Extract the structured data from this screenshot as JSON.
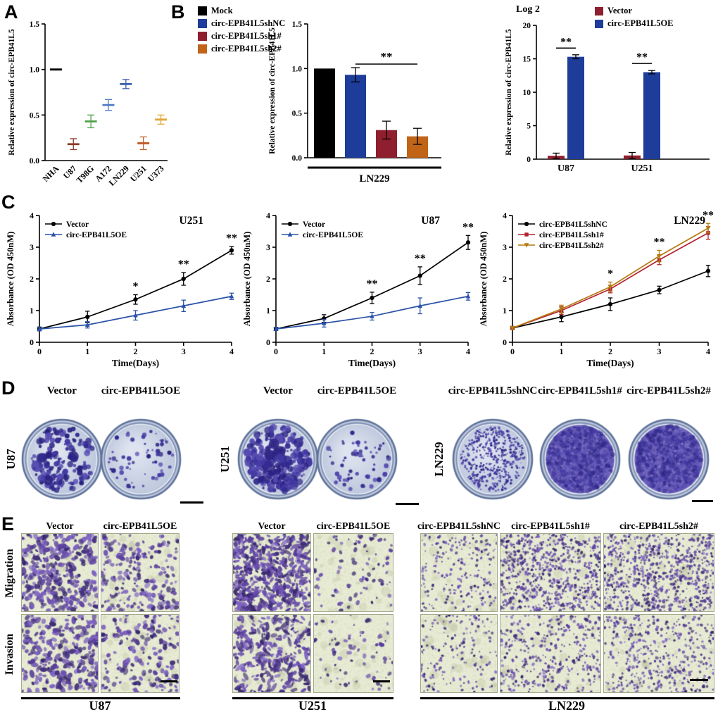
{
  "panel_labels": {
    "a": "A",
    "b": "B",
    "c": "C",
    "d": "D",
    "e": "E"
  },
  "chart_data": [
    {
      "id": "panel_a",
      "type": "scatter",
      "ylabel": "Relative expression of circ-EPB41L5",
      "ylim": [
        0.0,
        1.5
      ],
      "yticks": [
        0,
        0.5,
        1,
        1.5
      ],
      "ytick_labels": [
        "0.0",
        "0.5",
        "1.0",
        "1.5"
      ],
      "categories": [
        "NHA",
        "U87",
        "T98G",
        "A172",
        "LN229",
        "U251",
        "U373"
      ],
      "values": [
        1.0,
        0.18,
        0.43,
        0.61,
        0.84,
        0.19,
        0.45
      ],
      "errors": [
        0,
        0.06,
        0.07,
        0.06,
        0.05,
        0.07,
        0.05
      ],
      "colors": [
        "#000000",
        "#8b3a2a",
        "#4ea04a",
        "#4f7bc4",
        "#3a5fae",
        "#c05a28",
        "#e2a63c"
      ]
    },
    {
      "id": "panel_b_left",
      "type": "bar",
      "ylabel": "Relative expression of circ-EPB41L5",
      "xlabel": "LN229",
      "ylim": [
        0,
        1.5
      ],
      "yticks": [
        0,
        0.5,
        1,
        1.5
      ],
      "ytick_labels": [
        "0.0",
        "0.5",
        "1.0",
        "1.5"
      ],
      "bars": [
        {
          "name": "Mock",
          "value": 1.0,
          "error": 0,
          "color": "#000000"
        },
        {
          "name": "circ-EPB41L5shNC",
          "value": 0.93,
          "error": 0.08,
          "color": "#1e3c99"
        },
        {
          "name": "circ-EPB41L5sh1#",
          "value": 0.31,
          "error": 0.1,
          "color": "#8f1f2e"
        },
        {
          "name": "circ-EPB41L5sh2#",
          "value": 0.24,
          "error": 0.09,
          "color": "#c06418"
        }
      ],
      "significance": {
        "text": "**",
        "from_bar": 1,
        "to_bar": 3,
        "at_value": 1.05
      }
    },
    {
      "id": "panel_b_right",
      "type": "grouped_bar",
      "scale_note": "Log 2",
      "ylabel": "Relative expression of circ-EPB41L5",
      "ylim": [
        0,
        20
      ],
      "yticks": [
        0,
        5,
        10,
        15,
        20
      ],
      "ytick_labels": [
        "0",
        "5",
        "10",
        "15",
        "20"
      ],
      "categories": [
        "U87",
        "U251"
      ],
      "series": [
        {
          "name": "Vector",
          "color": "#8f1f2e",
          "values": [
            0.5,
            0.55
          ],
          "errors": [
            0.4,
            0.45
          ]
        },
        {
          "name": "circ-EPB41L5OE",
          "color": "#1e3c99",
          "values": [
            15.3,
            13.0
          ],
          "errors": [
            0.3,
            0.25
          ]
        }
      ],
      "significance": [
        {
          "group": 0,
          "text": "**",
          "at_value": 16.6
        },
        {
          "group": 1,
          "text": "**",
          "at_value": 14.3
        }
      ]
    },
    {
      "id": "panel_c_u251",
      "type": "line",
      "title": "U251",
      "xlabel": "Time(Days)",
      "ylabel": "Absorbance (OD 450nM)",
      "xlim": [
        0,
        4
      ],
      "ylim": [
        0,
        4
      ],
      "xticks": [
        0,
        1,
        2,
        3,
        4
      ],
      "yticks": [
        0,
        1,
        2,
        3,
        4
      ],
      "x": [
        0,
        1,
        2,
        3,
        4
      ],
      "series": [
        {
          "name": "Vector",
          "color": "#000000",
          "marker": "circle",
          "values": [
            0.42,
            0.8,
            1.35,
            2.0,
            2.9
          ],
          "errors": [
            0.06,
            0.18,
            0.15,
            0.2,
            0.12
          ]
        },
        {
          "name": "circ-EPB41L5OE",
          "color": "#2a52a8",
          "marker": "triangle",
          "values": [
            0.42,
            0.55,
            0.85,
            1.15,
            1.45
          ],
          "errors": [
            0.06,
            0.1,
            0.15,
            0.18,
            0.1
          ]
        }
      ],
      "annotations": [
        {
          "x": 2,
          "text": "*"
        },
        {
          "x": 3,
          "text": "**"
        },
        {
          "x": 4,
          "text": "**"
        }
      ]
    },
    {
      "id": "panel_c_u87",
      "type": "line",
      "title": "U87",
      "xlabel": "Time(Days)",
      "ylabel": "Absorbance (OD 450nM)",
      "xlim": [
        0,
        4
      ],
      "ylim": [
        0,
        4
      ],
      "xticks": [
        0,
        1,
        2,
        3,
        4
      ],
      "yticks": [
        0,
        1,
        2,
        3,
        4
      ],
      "x": [
        0,
        1,
        2,
        3,
        4
      ],
      "series": [
        {
          "name": "Vector",
          "color": "#000000",
          "marker": "circle",
          "values": [
            0.42,
            0.75,
            1.4,
            2.1,
            3.15
          ],
          "errors": [
            0.05,
            0.12,
            0.18,
            0.28,
            0.22
          ]
        },
        {
          "name": "circ-EPB41L5OE",
          "color": "#2a52a8",
          "marker": "triangle",
          "values": [
            0.42,
            0.6,
            0.82,
            1.15,
            1.45
          ],
          "errors": [
            0.05,
            0.12,
            0.12,
            0.25,
            0.12
          ]
        }
      ],
      "annotations": [
        {
          "x": 2,
          "text": "**"
        },
        {
          "x": 3,
          "text": "**"
        },
        {
          "x": 4,
          "text": "**"
        }
      ]
    },
    {
      "id": "panel_c_ln229",
      "type": "line",
      "title": "LN229",
      "xlabel": "Time(Days)",
      "ylabel": "Absorbance (OD 450nM)",
      "xlim": [
        0,
        4
      ],
      "ylim": [
        0,
        4
      ],
      "xticks": [
        0,
        1,
        2,
        3,
        4
      ],
      "yticks": [
        0,
        1,
        2,
        3,
        4
      ],
      "x": [
        0,
        1,
        2,
        3,
        4
      ],
      "series": [
        {
          "name": "circ-EPB41L5shNC",
          "color": "#000000",
          "marker": "circle",
          "values": [
            0.45,
            0.8,
            1.2,
            1.65,
            2.25
          ],
          "errors": [
            0.05,
            0.15,
            0.2,
            0.12,
            0.18
          ]
        },
        {
          "name": "circ-EPB41L5sh1#",
          "color": "#b32431",
          "marker": "square",
          "values": [
            0.45,
            1.0,
            1.68,
            2.6,
            3.45
          ],
          "errors": [
            0.05,
            0.12,
            0.12,
            0.15,
            0.2
          ]
        },
        {
          "name": "circ-EPB41L5sh2#",
          "color": "#b5790f",
          "marker": "triangle-down",
          "values": [
            0.45,
            1.05,
            1.75,
            2.72,
            3.6
          ],
          "errors": [
            0.05,
            0.12,
            0.15,
            0.18,
            0.15
          ]
        }
      ],
      "annotations": [
        {
          "x": 2,
          "text": "*"
        },
        {
          "x": 3,
          "text": "**"
        },
        {
          "x": 4,
          "text": "**"
        }
      ]
    }
  ],
  "panel_d": {
    "row_groups": [
      {
        "cell_line": "U87",
        "dishes": [
          {
            "label": "Vector",
            "colony_density": "high"
          },
          {
            "label": "circ-EPB41L5OE",
            "colony_density": "low"
          }
        ]
      },
      {
        "cell_line": "U251",
        "dishes": [
          {
            "label": "Vector",
            "colony_density": "very high"
          },
          {
            "label": "circ-EPB41L5OE",
            "colony_density": "low"
          }
        ]
      },
      {
        "cell_line": "LN229",
        "dishes": [
          {
            "label": "circ-EPB41L5shNC",
            "colony_density": "medium"
          },
          {
            "label": "circ-EPB41L5sh1#",
            "colony_density": "confluent"
          },
          {
            "label": "circ-EPB41L5sh2#",
            "colony_density": "confluent"
          }
        ]
      }
    ]
  },
  "panel_e": {
    "row_labels": [
      "Migration",
      "Invasion"
    ],
    "groups": [
      {
        "name": "U87",
        "columns": [
          {
            "label": "Vector",
            "migration_density": "high",
            "invasion_density": "high"
          },
          {
            "label": "circ-EPB41L5OE",
            "migration_density": "medium",
            "invasion_density": "medium"
          }
        ]
      },
      {
        "name": "U251",
        "columns": [
          {
            "label": "Vector",
            "migration_density": "very high",
            "invasion_density": "high"
          },
          {
            "label": "circ-EPB41L5OE",
            "migration_density": "low",
            "invasion_density": "low"
          }
        ]
      },
      {
        "name": "LN229",
        "columns": [
          {
            "label": "circ-EPB41L5shNC",
            "migration_density": "medium",
            "invasion_density": "medium"
          },
          {
            "label": "circ-EPB41L5sh1#",
            "migration_density": "very high",
            "invasion_density": "high"
          },
          {
            "label": "circ-EPB41L5sh2#",
            "migration_density": "very high",
            "invasion_density": "high"
          }
        ]
      }
    ]
  }
}
